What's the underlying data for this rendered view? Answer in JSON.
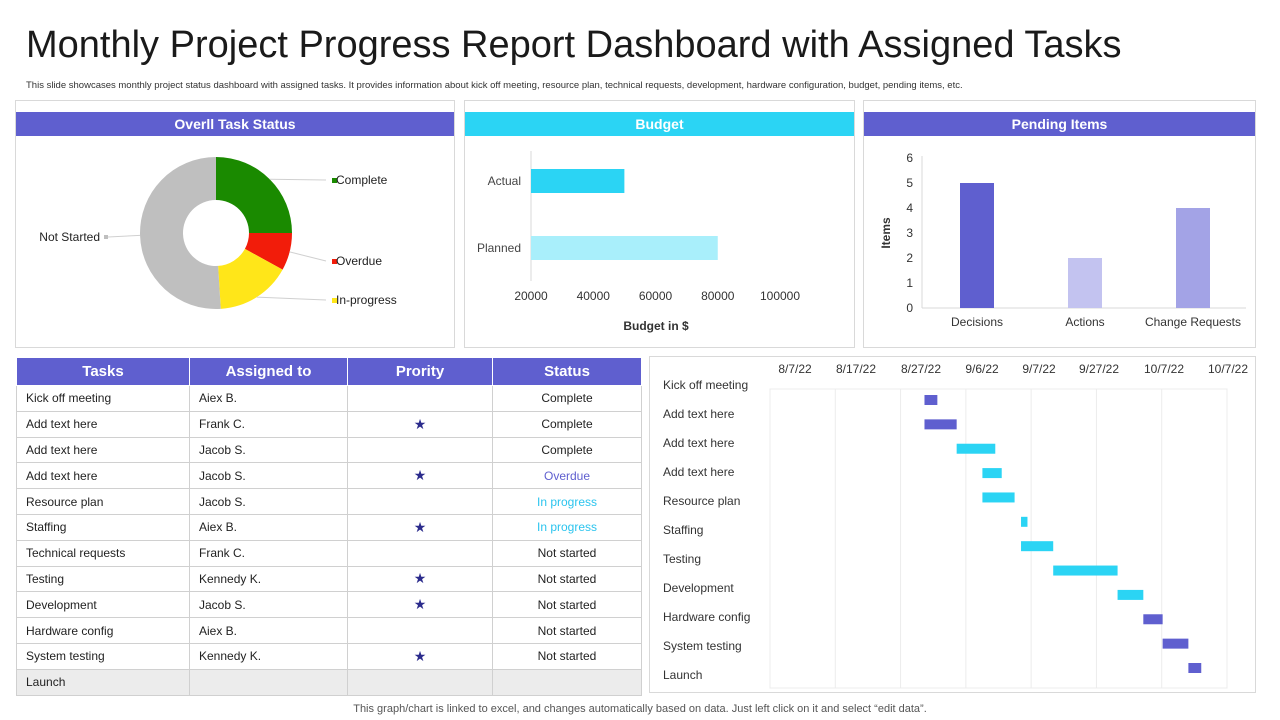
{
  "header": {
    "title": "Monthly Project Progress Report Dashboard with Assigned Tasks",
    "subtitle": "This slide showcases monthly project status dashboard with assigned tasks. It provides information about kick off meeting, resource plan, technical requests, development, hardware configuration, budget, pending items, etc."
  },
  "footer": {
    "note": "This graph/chart is linked to excel, and changes automatically based on data. Just left click on it and select “edit data”."
  },
  "colors": {
    "purple": "#5f5fcf",
    "cyan": "#2bd4f4",
    "light_cyan": "#a9effb",
    "green": "#1a8a00",
    "red": "#f21c0a",
    "yellow": "#ffe619",
    "grey": "#bfbfbf"
  },
  "chart_data": [
    {
      "type": "pie",
      "title": "Overll Task Status",
      "variant": "donut",
      "categories": [
        "Complete",
        "Overdue",
        "In-progress",
        "Not Started"
      ],
      "values": [
        25,
        8,
        16,
        51
      ],
      "colors": [
        "#1a8a00",
        "#f21c0a",
        "#ffe619",
        "#bfbfbf"
      ]
    },
    {
      "type": "bar",
      "orientation": "horizontal",
      "title": "Budget",
      "categories": [
        "Actual",
        "Planned"
      ],
      "values": [
        50000,
        80000
      ],
      "colors": [
        "#2bd4f4",
        "#a9effb"
      ],
      "xlabel": "Budget in $",
      "xlim": [
        20000,
        100000
      ],
      "xticks": [
        "20000",
        "40000",
        "60000",
        "80000",
        "100000"
      ]
    },
    {
      "type": "bar",
      "title": "Pending Items",
      "categories": [
        "Decisions",
        "Actions",
        "Change Requests"
      ],
      "values": [
        5,
        2,
        4
      ],
      "colors": [
        "#5f5fcf",
        "#c3c3f0",
        "#a3a3e6"
      ],
      "ylabel": "Items",
      "ylim": [
        0,
        6
      ],
      "yticks": [
        "0",
        "1",
        "2",
        "3",
        "4",
        "5",
        "6"
      ]
    },
    {
      "type": "gantt",
      "date_ticks": [
        "8/7/22",
        "8/17/22",
        "8/27/22",
        "9/6/22",
        "9/7/22",
        "9/27/22",
        "10/7/22",
        "10/7/22"
      ],
      "x_start": "2022-08-07",
      "x_end": "2022-10-17",
      "tasks": [
        {
          "name": "Kick off meeting",
          "start": "2022-08-31",
          "end": "2022-09-02",
          "color": "#5f5fcf"
        },
        {
          "name": "Add text here",
          "start": "2022-08-31",
          "end": "2022-09-05",
          "color": "#5f5fcf"
        },
        {
          "name": "Add text here",
          "start": "2022-09-05",
          "end": "2022-09-11",
          "color": "#2bd4f4"
        },
        {
          "name": "Add text here",
          "start": "2022-09-09",
          "end": "2022-09-12",
          "color": "#2bd4f4"
        },
        {
          "name": "Resource plan",
          "start": "2022-09-09",
          "end": "2022-09-14",
          "color": "#2bd4f4"
        },
        {
          "name": "Staffing",
          "start": "2022-09-15",
          "end": "2022-09-16",
          "color": "#2bd4f4"
        },
        {
          "name": "Testing",
          "start": "2022-09-15",
          "end": "2022-09-20",
          "color": "#2bd4f4"
        },
        {
          "name": "Development",
          "start": "2022-09-20",
          "end": "2022-09-30",
          "color": "#2bd4f4"
        },
        {
          "name": "Hardware config",
          "start": "2022-09-30",
          "end": "2022-10-04",
          "color": "#2bd4f4"
        },
        {
          "name": "System testing",
          "start": "2022-10-04",
          "end": "2022-10-07",
          "color": "#5f5fcf"
        },
        {
          "name": "Launch",
          "start": "2022-10-07",
          "end": "2022-10-11",
          "color": "#5f5fcf"
        },
        {
          "name": "",
          "start": "2022-10-11",
          "end": "2022-10-13",
          "color": "#5f5fcf"
        }
      ]
    }
  ],
  "task_table": {
    "headers": [
      "Tasks",
      "Assigned to",
      "Prority",
      "Status"
    ],
    "rows": [
      {
        "task": "Kick off meeting",
        "assigned": "Aiex B.",
        "priority": "",
        "status": "Complete",
        "status_type": "complete"
      },
      {
        "task": "Add text here",
        "assigned": "Frank C.",
        "priority": "★",
        "status": "Complete",
        "status_type": "complete"
      },
      {
        "task": "Add text here",
        "assigned": "Jacob S.",
        "priority": "",
        "status": "Complete",
        "status_type": "complete"
      },
      {
        "task": "Add text here",
        "assigned": "Jacob S.",
        "priority": "★",
        "status": "Overdue",
        "status_type": "overdue"
      },
      {
        "task": "Resource plan",
        "assigned": "Jacob S.",
        "priority": "",
        "status": "In progress",
        "status_type": "progress"
      },
      {
        "task": "Staffing",
        "assigned": "Aiex B.",
        "priority": "★",
        "status": "In progress",
        "status_type": "progress"
      },
      {
        "task": "Technical requests",
        "assigned": "Frank C.",
        "priority": "",
        "status": "Not started",
        "status_type": "none"
      },
      {
        "task": "Testing",
        "assigned": "Kennedy K.",
        "priority": "★",
        "status": "Not started",
        "status_type": "none"
      },
      {
        "task": "Development",
        "assigned": "Jacob S.",
        "priority": "★",
        "status": "Not started",
        "status_type": "none"
      },
      {
        "task": "Hardware config",
        "assigned": "Aiex B.",
        "priority": "",
        "status": "Not started",
        "status_type": "none"
      },
      {
        "task": "System testing",
        "assigned": "Kennedy K.",
        "priority": "★",
        "status": "Not started",
        "status_type": "none"
      },
      {
        "task": "Launch",
        "assigned": "",
        "priority": "",
        "status": "",
        "status_type": "none"
      }
    ]
  }
}
